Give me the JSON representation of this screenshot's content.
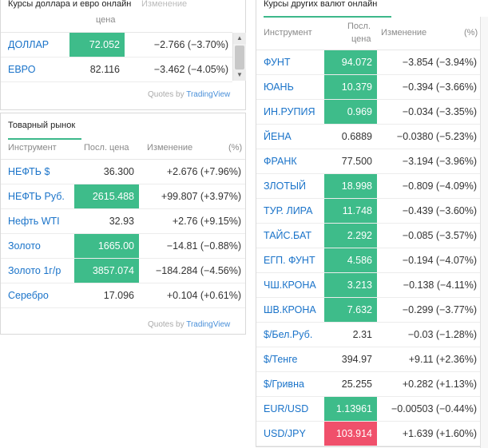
{
  "colors": {
    "up": "#3ebc8a",
    "down": "#f0506b",
    "link": "#1a73c9",
    "accent": "#3cb88a"
  },
  "usd_eur": {
    "title": "Курсы доллара и евро онлайн",
    "col_price": "цена",
    "col_change": "Изменение",
    "rows": [
      {
        "name": "ДОЛЛАР",
        "price": "72.052",
        "dir": "up",
        "change": "−2.766 (−3.70%)"
      },
      {
        "name": "ЕВРО",
        "price": "82.116",
        "dir": "none",
        "change": "−3.462 (−4.05%)"
      }
    ],
    "quotes_by": "Quotes by",
    "tradingview": "TradingView"
  },
  "commodities": {
    "title": "Товарный рынок",
    "col_instrument": "Инструмент",
    "col_price": "Посл. цена",
    "col_change": "Изменение",
    "col_pct": "(%)",
    "rows": [
      {
        "name": "НЕФТЬ $",
        "price": "36.300",
        "dir": "none",
        "change": "+2.676 (+7.96%)"
      },
      {
        "name": "НЕФТЬ Руб.",
        "price": "2615.488",
        "dir": "up",
        "change": "+99.807 (+3.97%)"
      },
      {
        "name": "Нефть WTI",
        "price": "32.93",
        "dir": "none",
        "change": "+2.76 (+9.15%)"
      },
      {
        "name": "Золото",
        "price": "1665.00",
        "dir": "up",
        "change": "−14.81 (−0.88%)"
      },
      {
        "name": "Золото 1г/р",
        "price": "3857.074",
        "dir": "up",
        "change": "−184.284 (−4.56%)"
      },
      {
        "name": "Серебро",
        "price": "17.096",
        "dir": "none",
        "change": "+0.104 (+0.61%)"
      }
    ],
    "quotes_by": "Quotes by",
    "tradingview": "TradingView"
  },
  "other_fx": {
    "title": "Курсы других валют онлайн",
    "col_instrument": "Инструмент",
    "col_price_1": "Посл.",
    "col_price_2": "цена",
    "col_change": "Изменение",
    "col_pct": "(%)",
    "rows": [
      {
        "name": "ФУНТ",
        "price": "94.072",
        "dir": "up",
        "change": "−3.854 (−3.94%)"
      },
      {
        "name": "ЮАНЬ",
        "price": "10.379",
        "dir": "up",
        "change": "−0.394 (−3.66%)"
      },
      {
        "name": "ИН.РУПИЯ",
        "price": "0.969",
        "dir": "up",
        "change": "−0.034 (−3.35%)"
      },
      {
        "name": "ЙЕНА",
        "price": "0.6889",
        "dir": "none",
        "change": "−0.0380 (−5.23%)"
      },
      {
        "name": "ФРАНК",
        "price": "77.500",
        "dir": "none",
        "change": "−3.194 (−3.96%)"
      },
      {
        "name": "ЗЛОТЫЙ",
        "price": "18.998",
        "dir": "up",
        "change": "−0.809 (−4.09%)"
      },
      {
        "name": "ТУР. ЛИРА",
        "price": "11.748",
        "dir": "up",
        "change": "−0.439 (−3.60%)"
      },
      {
        "name": "ТАЙС.БАТ",
        "price": "2.292",
        "dir": "up",
        "change": "−0.085 (−3.57%)"
      },
      {
        "name": "ЕГП. ФУНТ",
        "price": "4.586",
        "dir": "up",
        "change": "−0.194 (−4.07%)"
      },
      {
        "name": "ЧШ.КРОНА",
        "price": "3.213",
        "dir": "up",
        "change": "−0.138 (−4.11%)"
      },
      {
        "name": "ШВ.КРОНА",
        "price": "7.632",
        "dir": "up",
        "change": "−0.299 (−3.77%)"
      },
      {
        "name": "$/Бел.Руб.",
        "price": "2.31",
        "dir": "none",
        "change": "−0.03 (−1.28%)"
      },
      {
        "name": "$/Тенге",
        "price": "394.97",
        "dir": "none",
        "change": "+9.11 (+2.36%)"
      },
      {
        "name": "$/Гривна",
        "price": "25.255",
        "dir": "none",
        "change": "+0.282 (+1.13%)"
      },
      {
        "name": "EUR/USD",
        "price": "1.13961",
        "dir": "up",
        "change": "−0.00503 (−0.44%)"
      },
      {
        "name": "USD/JPY",
        "price": "103.914",
        "dir": "down",
        "change": "+1.639 (+1.60%)"
      }
    ]
  }
}
